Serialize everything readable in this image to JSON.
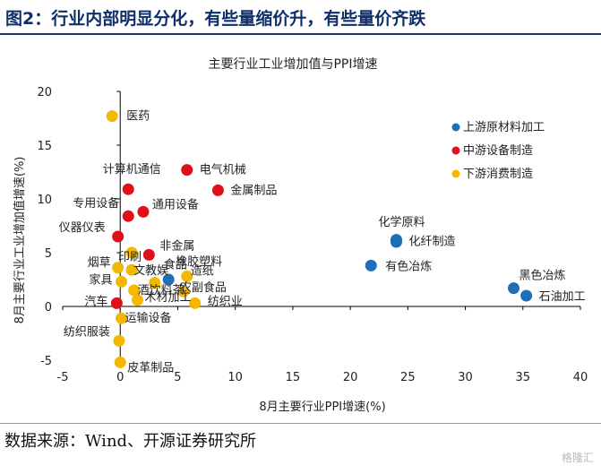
{
  "figure_title": "图2：行业内部明显分化，有些量缩价升，有些量价齐跌",
  "source": "数据来源：Wind、开源证券研究所",
  "watermark": "格隆汇",
  "colors": {
    "upstream": "#1f6fb8",
    "midstream": "#e0101a",
    "downstream": "#f5b800",
    "title": "#0f2f6b"
  },
  "chart_data": {
    "type": "scatter",
    "title": "主要行业工业增加值与PPI增速",
    "xlabel": "8月主要行业PPI增速(%)",
    "ylabel": "8月主要行业工业增加值增速(%)",
    "xlim": [
      -5,
      40
    ],
    "ylim": [
      -5,
      20
    ],
    "xticks": [
      "-5",
      "0",
      "5",
      "10",
      "15",
      "20",
      "25",
      "30",
      "35",
      "40"
    ],
    "yticks": [
      "-5",
      "0",
      "5",
      "10",
      "15",
      "20"
    ],
    "legend_position": "top-right",
    "series": [
      {
        "name": "上游原材料加工",
        "key": "upstream",
        "points": [
          {
            "label": "化学原料",
            "x": 24.0,
            "y": 6.0
          },
          {
            "label": "化纤制造",
            "x": 24.0,
            "y": 6.2
          },
          {
            "label": "有色冶炼",
            "x": 21.8,
            "y": 3.8
          },
          {
            "label": "黑色冶炼",
            "x": 34.2,
            "y": 1.7
          },
          {
            "label": "石油加工",
            "x": 35.3,
            "y": 1.0
          },
          {
            "label": "橡胶塑料",
            "x": 4.2,
            "y": 2.5
          }
        ]
      },
      {
        "name": "中游设备制造",
        "key": "midstream",
        "points": [
          {
            "label": "电气机械",
            "x": 5.8,
            "y": 12.7
          },
          {
            "label": "金属制品",
            "x": 8.5,
            "y": 10.8
          },
          {
            "label": "计算机通信",
            "x": 0.7,
            "y": 10.9
          },
          {
            "label": "通用设备",
            "x": 2.0,
            "y": 8.8
          },
          {
            "label": "专用设备",
            "x": 0.7,
            "y": 8.4
          },
          {
            "label": "仪器仪表",
            "x": -0.2,
            "y": 6.5
          },
          {
            "label": "非金属",
            "x": 2.5,
            "y": 4.8
          },
          {
            "label": "汽车",
            "x": -0.3,
            "y": 0.3
          }
        ]
      },
      {
        "name": "下游消费制造",
        "key": "downstream",
        "points": [
          {
            "label": "医药",
            "x": -0.7,
            "y": 17.7
          },
          {
            "label": "印刷",
            "x": 1.0,
            "y": 5.0
          },
          {
            "label": "烟草",
            "x": -0.2,
            "y": 3.6
          },
          {
            "label": "文教娱",
            "x": 1.0,
            "y": 3.4
          },
          {
            "label": "家具",
            "x": 0.1,
            "y": 2.3
          },
          {
            "label": "食品",
            "x": 3.0,
            "y": 2.2
          },
          {
            "label": "造纸",
            "x": 5.8,
            "y": 2.8
          },
          {
            "label": "酒饮料茶",
            "x": 1.2,
            "y": 1.5
          },
          {
            "label": "木材加工",
            "x": 1.5,
            "y": 0.6
          },
          {
            "label": "农副食品",
            "x": 5.5,
            "y": 1.4
          },
          {
            "label": "纺织业",
            "x": 6.5,
            "y": 0.3
          },
          {
            "label": "运输设备",
            "x": 0.1,
            "y": -1.1
          },
          {
            "label": "纺织服装",
            "x": -0.1,
            "y": -3.2
          },
          {
            "label": "皮革制品",
            "x": 0.0,
            "y": -5.2
          }
        ]
      }
    ]
  }
}
